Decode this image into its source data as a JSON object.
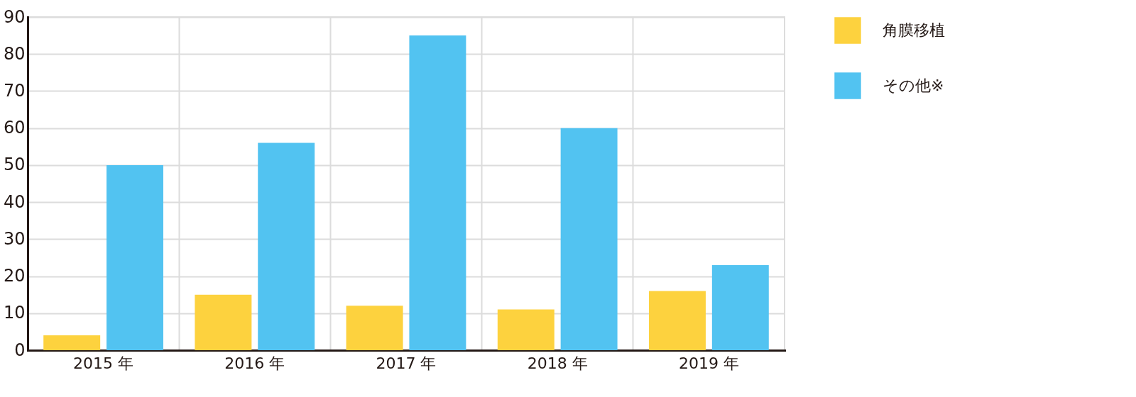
{
  "chart_data": {
    "type": "bar",
    "categories": [
      "2015 年",
      "2016 年",
      "2017 年",
      "2018 年",
      "2019 年"
    ],
    "series": [
      {
        "name": "角膜移植",
        "color": "#fdd23e",
        "values": [
          4,
          15,
          12,
          11,
          16
        ]
      },
      {
        "name": "その他※",
        "color": "#52c3f1",
        "values": [
          50,
          56,
          85,
          60,
          23
        ]
      }
    ],
    "ylim": [
      0,
      90
    ],
    "yticks": [
      0,
      10,
      20,
      30,
      40,
      50,
      60,
      70,
      80,
      90
    ],
    "grid": true,
    "legend": "top right"
  }
}
